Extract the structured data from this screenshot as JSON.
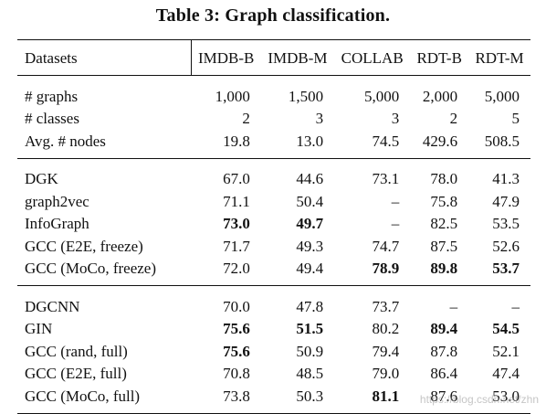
{
  "caption": "Table 3: Graph classification.",
  "columns": [
    "Datasets",
    "IMDB-B",
    "IMDB-M",
    "COLLAB",
    "RDT-B",
    "RDT-M"
  ],
  "groups": [
    {
      "rows": [
        {
          "label": "# graphs",
          "cells": [
            {
              "v": "1,000"
            },
            {
              "v": "1,500"
            },
            {
              "v": "5,000"
            },
            {
              "v": "2,000"
            },
            {
              "v": "5,000"
            }
          ]
        },
        {
          "label": "# classes",
          "cells": [
            {
              "v": "2"
            },
            {
              "v": "3"
            },
            {
              "v": "3"
            },
            {
              "v": "2"
            },
            {
              "v": "5"
            }
          ]
        },
        {
          "label": "Avg. # nodes",
          "cells": [
            {
              "v": "19.8"
            },
            {
              "v": "13.0"
            },
            {
              "v": "74.5"
            },
            {
              "v": "429.6"
            },
            {
              "v": "508.5"
            }
          ]
        }
      ]
    },
    {
      "rows": [
        {
          "label": "DGK",
          "cells": [
            {
              "v": "67.0"
            },
            {
              "v": "44.6"
            },
            {
              "v": "73.1"
            },
            {
              "v": "78.0"
            },
            {
              "v": "41.3"
            }
          ]
        },
        {
          "label": "graph2vec",
          "cells": [
            {
              "v": "71.1"
            },
            {
              "v": "50.4"
            },
            {
              "v": "–"
            },
            {
              "v": "75.8"
            },
            {
              "v": "47.9"
            }
          ]
        },
        {
          "label": "InfoGraph",
          "cells": [
            {
              "v": "73.0",
              "b": true
            },
            {
              "v": "49.7",
              "b": true
            },
            {
              "v": "–"
            },
            {
              "v": "82.5"
            },
            {
              "v": "53.5"
            }
          ]
        },
        {
          "label": "GCC (E2E, freeze)",
          "cells": [
            {
              "v": "71.7"
            },
            {
              "v": "49.3"
            },
            {
              "v": "74.7"
            },
            {
              "v": "87.5"
            },
            {
              "v": "52.6"
            }
          ]
        },
        {
          "label": "GCC (MoCo, freeze)",
          "cells": [
            {
              "v": "72.0"
            },
            {
              "v": "49.4"
            },
            {
              "v": "78.9",
              "b": true
            },
            {
              "v": "89.8",
              "b": true
            },
            {
              "v": "53.7",
              "b": true
            }
          ]
        }
      ]
    },
    {
      "rows": [
        {
          "label": "DGCNN",
          "cells": [
            {
              "v": "70.0"
            },
            {
              "v": "47.8"
            },
            {
              "v": "73.7"
            },
            {
              "v": "–"
            },
            {
              "v": "–"
            }
          ]
        },
        {
          "label": "GIN",
          "cells": [
            {
              "v": "75.6",
              "b": true
            },
            {
              "v": "51.5",
              "b": true
            },
            {
              "v": "80.2"
            },
            {
              "v": "89.4",
              "b": true
            },
            {
              "v": "54.5",
              "b": true
            }
          ]
        },
        {
          "label": "GCC (rand, full)",
          "cells": [
            {
              "v": "75.6",
              "b": true
            },
            {
              "v": "50.9"
            },
            {
              "v": "79.4"
            },
            {
              "v": "87.8"
            },
            {
              "v": "52.1"
            }
          ]
        },
        {
          "label": "GCC (E2E, full)",
          "cells": [
            {
              "v": "70.8"
            },
            {
              "v": "48.5"
            },
            {
              "v": "79.0"
            },
            {
              "v": "86.4"
            },
            {
              "v": "47.4"
            }
          ]
        },
        {
          "label": "GCC (MoCo, full)",
          "cells": [
            {
              "v": "73.8"
            },
            {
              "v": "50.3"
            },
            {
              "v": "81.1",
              "b": true
            },
            {
              "v": "87.6"
            },
            {
              "v": "53.0"
            }
          ]
        }
      ]
    }
  ],
  "watermark": "https://blog.csdn.net/zhn"
}
